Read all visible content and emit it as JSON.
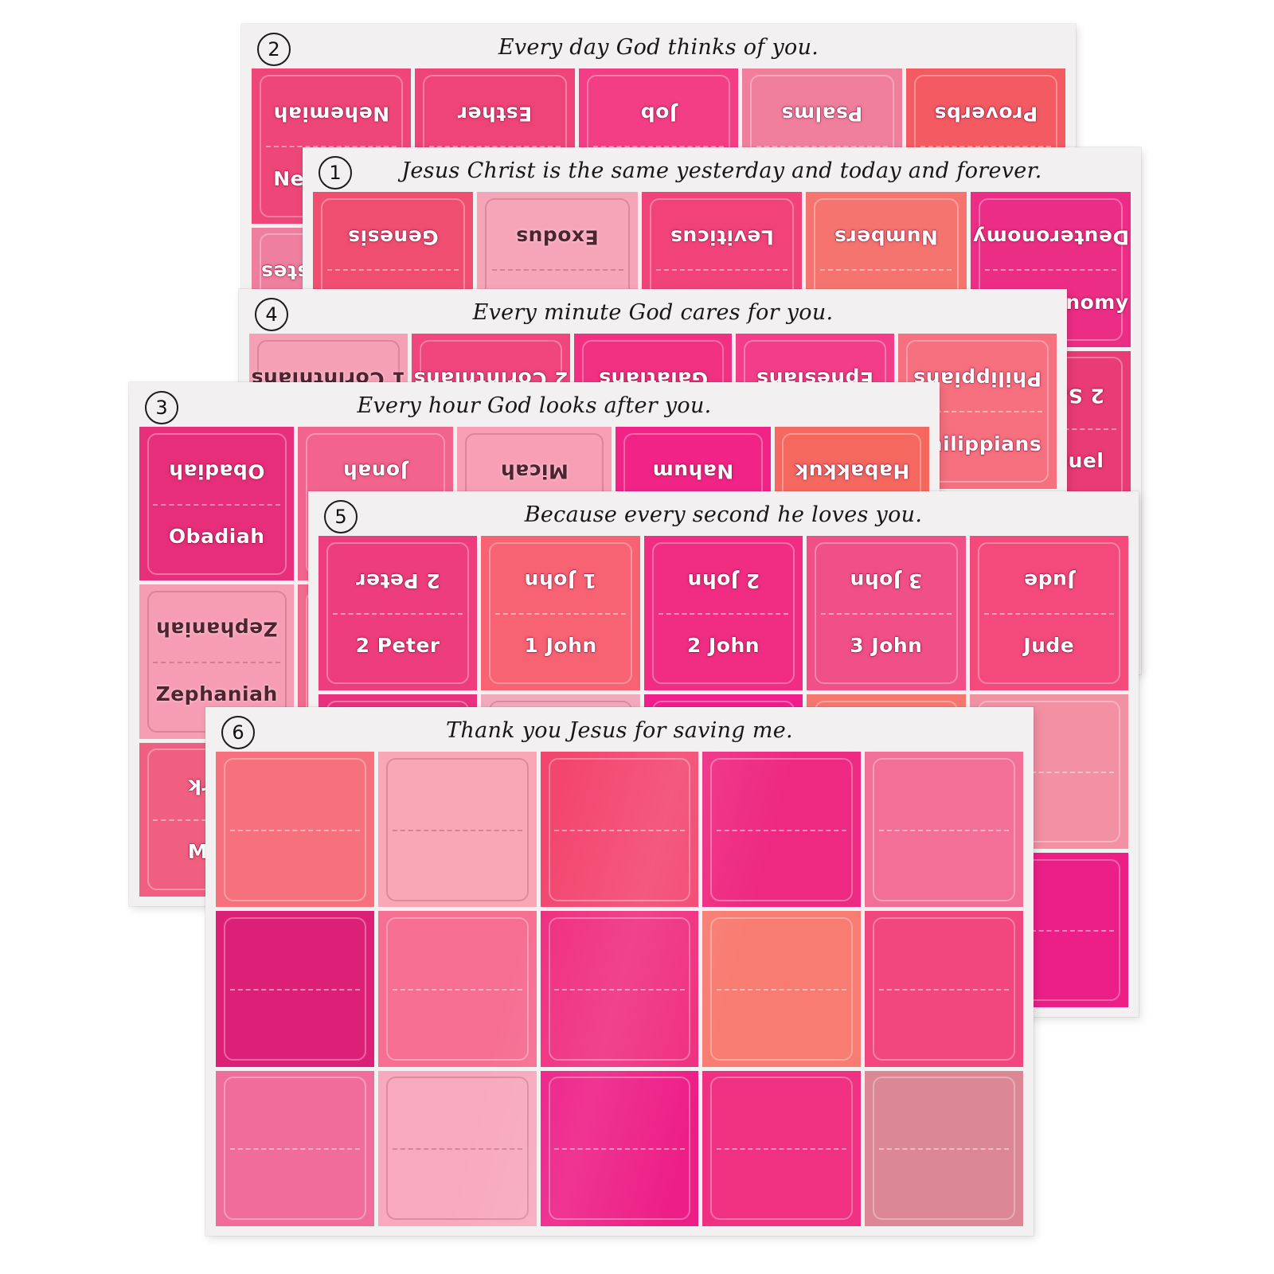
{
  "photo": {
    "description_colors": {
      "card_background": "#f2f0f1",
      "page_background": "#ffffff",
      "quote_ink": "#171717",
      "light_label_ink": "#ffffff",
      "dark_label_ink": "#4e2430"
    }
  },
  "sheets": [
    {
      "number": "1",
      "quote": "Jesus Christ is the same yesterday and today and forever.",
      "rows": [
        {
          "cells": [
            {
              "label": "Genesis",
              "color": "#f04e70",
              "ink": "light"
            },
            {
              "label": "Exodus",
              "color": "#f6a5b8",
              "ink": "dark"
            },
            {
              "label": "Leviticus",
              "color": "#f1437a",
              "ink": "light"
            },
            {
              "label": "Numbers",
              "color": "#f57470",
              "ink": "light"
            },
            {
              "label": "Deuteronomy",
              "color": "#ec2d86",
              "ink": "light"
            }
          ]
        },
        {
          "cells": [
            {
              "label": "",
              "color": "#f0558a",
              "ink": "light"
            },
            {
              "label": "",
              "color": "#f48fa6",
              "ink": "light"
            },
            {
              "label": "",
              "color": "#ee3f80",
              "ink": "light"
            },
            {
              "label": "",
              "color": "#f7a3b5",
              "ink": "dark"
            },
            {
              "label": "2 Samuel",
              "color": "#e93b75",
              "ink": "light"
            }
          ]
        },
        {
          "cells": [
            {
              "label": "",
              "color": "#f2688c",
              "ink": "light"
            },
            {
              "label": "",
              "color": "#f9a8ba",
              "ink": "dark"
            },
            {
              "label": "",
              "color": "#ef437f",
              "ink": "light"
            },
            {
              "label": "",
              "color": "#f57d92",
              "ink": "light"
            },
            {
              "label": "",
              "color": "#ea2c7f",
              "ink": "light"
            }
          ]
        }
      ]
    },
    {
      "number": "2",
      "quote": "Every day God thinks of you.",
      "rows": [
        {
          "cells": [
            {
              "label": "Nehemiah",
              "color": "#ef4679",
              "ink": "light"
            },
            {
              "label": "Esther",
              "color": "#ee4478",
              "ink": "light"
            },
            {
              "label": "Job",
              "color": "#f33e86",
              "ink": "light"
            },
            {
              "label": "Psalms",
              "color": "#ef7f9c",
              "ink": "light"
            },
            {
              "label": "Proverbs",
              "color": "#f45a61",
              "ink": "light"
            }
          ]
        },
        {
          "cells": [
            {
              "label": "Ecclesiastes",
              "color": "#ef7f9f",
              "ink": "light"
            },
            {
              "label": "",
              "color": "#f4608a",
              "ink": "light"
            },
            {
              "label": "",
              "color": "#ee3f80",
              "ink": "light"
            },
            {
              "label": "",
              "color": "#f7a3b5",
              "ink": "dark"
            },
            {
              "label": "",
              "color": "#f2608a",
              "ink": "light"
            }
          ]
        },
        {
          "cells": [
            {
              "label": "",
              "color": "#f06a8e",
              "ink": "light"
            },
            {
              "label": "",
              "color": "#f48fa6",
              "ink": "light"
            },
            {
              "label": "",
              "color": "#ef437f",
              "ink": "light"
            },
            {
              "label": "",
              "color": "#f79fb5",
              "ink": "dark"
            },
            {
              "label": "",
              "color": "#ee2e80",
              "ink": "light"
            }
          ]
        }
      ]
    },
    {
      "number": "3",
      "quote": "Every hour God looks after you.",
      "rows": [
        {
          "cells": [
            {
              "label": "Obadiah",
              "color": "#e62e7b",
              "ink": "light"
            },
            {
              "label": "Jonah",
              "color": "#f2638d",
              "ink": "light"
            },
            {
              "label": "Micah",
              "color": "#f79fb5",
              "ink": "dark"
            },
            {
              "label": "Nahum",
              "color": "#f12386",
              "ink": "light"
            },
            {
              "label": "Habakkuk",
              "color": "#f5685f",
              "ink": "light"
            }
          ]
        },
        {
          "cells": [
            {
              "label": "Zephaniah",
              "color": "#f79db3",
              "ink": "dark"
            },
            {
              "label": "",
              "color": "#f06a8e",
              "ink": "light"
            },
            {
              "label": "",
              "color": "#ef437f",
              "ink": "light"
            },
            {
              "label": "",
              "color": "#f2719c",
              "ink": "light"
            },
            {
              "label": "",
              "color": "#ee2e80",
              "ink": "light"
            }
          ]
        },
        {
          "cells": [
            {
              "label": "Mark",
              "color": "#f15f80",
              "ink": "light"
            },
            {
              "label": "",
              "color": "#f48fa6",
              "ink": "light"
            },
            {
              "label": "",
              "color": "#ee3f80",
              "ink": "light"
            },
            {
              "label": "",
              "color": "#f7a3b5",
              "ink": "dark"
            },
            {
              "label": "",
              "color": "#f2608a",
              "ink": "light"
            }
          ]
        }
      ]
    },
    {
      "number": "4",
      "quote": "Every minute God cares for you.",
      "rows": [
        {
          "cells": [
            {
              "label": "1 Corinthians",
              "color": "#f6a0b5",
              "ink": "dark"
            },
            {
              "label": "2 Corinthians",
              "color": "#f0457d",
              "ink": "light"
            },
            {
              "label": "Galatians",
              "color": "#f23082",
              "ink": "light"
            },
            {
              "label": "Ephesians",
              "color": "#f43d8a",
              "ink": "light"
            },
            {
              "label": "Philippians",
              "color": "#f7707f",
              "ink": "light"
            }
          ]
        },
        {
          "cells": [
            {
              "label": "",
              "color": "#f06a8e",
              "ink": "light"
            },
            {
              "label": "",
              "color": "#f48fa6",
              "ink": "light"
            },
            {
              "label": "",
              "color": "#ef437f",
              "ink": "light"
            },
            {
              "label": "",
              "color": "#f7a3b5",
              "ink": "dark"
            },
            {
              "label": "",
              "color": "#f2608a",
              "ink": "light"
            }
          ]
        },
        {
          "cells": [
            {
              "label": "",
              "color": "#f2688c",
              "ink": "light"
            },
            {
              "label": "",
              "color": "#f9a8ba",
              "ink": "dark"
            },
            {
              "label": "",
              "color": "#ee3f80",
              "ink": "light"
            },
            {
              "label": "",
              "color": "#f57d92",
              "ink": "light"
            },
            {
              "label": "",
              "color": "#ea2c7f",
              "ink": "light"
            }
          ]
        }
      ]
    },
    {
      "number": "5",
      "quote": "Because every second he loves you.",
      "rows": [
        {
          "cells": [
            {
              "label": "2 Peter",
              "color": "#ee3d7c",
              "ink": "light"
            },
            {
              "label": "1 John",
              "color": "#f76373",
              "ink": "light"
            },
            {
              "label": "2 John",
              "color": "#f02d83",
              "ink": "light"
            },
            {
              "label": "3 John",
              "color": "#f14f87",
              "ink": "light"
            },
            {
              "label": "Jude",
              "color": "#f34a7b",
              "ink": "light"
            }
          ]
        },
        {
          "cells": [
            {
              "label": "",
              "color": "#e8317e",
              "ink": "light"
            },
            {
              "label": "",
              "color": "#f3a9bc",
              "ink": "dark"
            },
            {
              "label": "",
              "color": "#f01e8c",
              "ink": "light"
            },
            {
              "label": "",
              "color": "#f7776f",
              "ink": "light"
            },
            {
              "label": "",
              "color": "#f290a4",
              "ink": "light"
            }
          ]
        },
        {
          "cells": [
            {
              "label": "",
              "color": "#ee3f7d",
              "ink": "light"
            },
            {
              "label": "",
              "color": "#f6a6b8",
              "ink": "dark"
            },
            {
              "label": "",
              "color": "#ec2d86",
              "ink": "light"
            },
            {
              "label": "",
              "color": "#f2608a",
              "ink": "light"
            },
            {
              "label": "",
              "color": "#eb1f86",
              "ink": "light"
            }
          ]
        }
      ]
    },
    {
      "number": "6",
      "quote": "Thank you Jesus for saving me.",
      "rows": [
        {
          "cells": [
            {
              "label": "",
              "color": "#f7707e",
              "ink": "light"
            },
            {
              "label": "",
              "color": "#f9a7b7",
              "ink": "dark"
            },
            {
              "label": "",
              "color": "#f3466f",
              "ink": "light"
            },
            {
              "label": "",
              "color": "#ee2981",
              "ink": "light"
            },
            {
              "label": "",
              "color": "#f26f97",
              "ink": "light"
            }
          ]
        },
        {
          "cells": [
            {
              "label": "",
              "color": "#dd2077",
              "ink": "light"
            },
            {
              "label": "",
              "color": "#f66f93",
              "ink": "light"
            },
            {
              "label": "",
              "color": "#ef2e7f",
              "ink": "light"
            },
            {
              "label": "",
              "color": "#f87c72",
              "ink": "light"
            },
            {
              "label": "",
              "color": "#f2467e",
              "ink": "light"
            }
          ]
        },
        {
          "cells": [
            {
              "label": "",
              "color": "#f06d9b",
              "ink": "light"
            },
            {
              "label": "",
              "color": "#f8a9bd",
              "ink": "dark"
            },
            {
              "label": "",
              "color": "#ed1e86",
              "ink": "light"
            },
            {
              "label": "",
              "color": "#f03080",
              "ink": "light"
            },
            {
              "label": "",
              "color": "#db8794",
              "ink": "light"
            }
          ]
        }
      ]
    }
  ]
}
